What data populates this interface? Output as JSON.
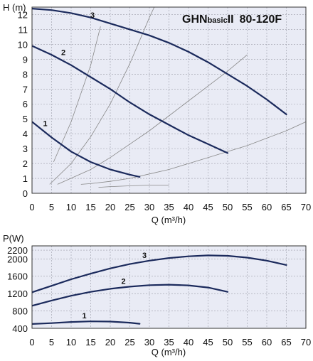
{
  "chart_data": [
    {
      "type": "line",
      "title": "GHNbasicII 80-120F",
      "title_parts": {
        "brand": "GHN",
        "sub": "basic",
        "suffix": "II",
        "model": "80-120F"
      },
      "xlabel": "Q (m³/h)",
      "ylabel": "H (m)",
      "xlim": [
        0,
        70
      ],
      "ylim": [
        0,
        12.5
      ],
      "x_ticks": [
        0,
        5,
        10,
        15,
        20,
        25,
        30,
        35,
        40,
        45,
        50,
        55,
        60,
        65,
        70
      ],
      "y_ticks": [
        0,
        1,
        2,
        3,
        4,
        5,
        6,
        7,
        8,
        9,
        10,
        11,
        12
      ],
      "grid": true,
      "background": "#e9ebf5",
      "curve_color": "#1b2a5c",
      "system_curve_color": "#888888",
      "series": [
        {
          "name": "1",
          "x": [
            0,
            5,
            10,
            15,
            20,
            25,
            27.5
          ],
          "y": [
            4.8,
            3.75,
            2.8,
            2.1,
            1.6,
            1.25,
            1.1
          ]
        },
        {
          "name": "2",
          "x": [
            0,
            5,
            10,
            15,
            20,
            25,
            30,
            35,
            40,
            45,
            50
          ],
          "y": [
            9.9,
            9.3,
            8.6,
            7.8,
            7.0,
            6.1,
            5.3,
            4.6,
            3.9,
            3.3,
            2.7
          ]
        },
        {
          "name": "3",
          "x": [
            0,
            5,
            10,
            15,
            20,
            25,
            30,
            35,
            40,
            45,
            50,
            55,
            60,
            65
          ],
          "y": [
            12.4,
            12.3,
            12.1,
            11.8,
            11.4,
            11.0,
            10.6,
            10.1,
            9.5,
            8.8,
            8.0,
            7.2,
            6.3,
            5.3
          ]
        }
      ],
      "system_curves": [
        {
          "x": [
            5.5,
            10,
            15,
            17.5
          ],
          "y": [
            2.1,
            4.8,
            8.6,
            11.2
          ]
        },
        {
          "x": [
            4.5,
            10,
            15,
            20,
            25,
            30,
            33
          ],
          "y": [
            0.6,
            2.0,
            3.8,
            6.0,
            8.7,
            11.8,
            13.5
          ]
        },
        {
          "x": [
            6.5,
            15,
            20,
            25,
            30,
            35,
            40,
            45,
            50,
            55
          ],
          "y": [
            0.6,
            1.6,
            2.4,
            3.3,
            4.2,
            5.2,
            6.2,
            7.2,
            8.2,
            9.3
          ]
        },
        {
          "x": [
            12.5,
            15,
            20,
            25,
            30,
            35,
            40,
            45,
            50,
            55,
            60,
            65,
            70
          ],
          "y": [
            0.6,
            0.65,
            0.8,
            1.0,
            1.3,
            1.6,
            2.0,
            2.4,
            2.8,
            3.2,
            3.7,
            4.2,
            4.8
          ]
        },
        {
          "x": [
            17,
            20,
            25,
            30,
            35
          ],
          "y": [
            0.4,
            0.45,
            0.5,
            0.55,
            0.55
          ]
        }
      ]
    },
    {
      "type": "line",
      "title": "",
      "xlabel": "Q (m³/h)",
      "ylabel": "P(W)",
      "xlim": [
        0,
        70
      ],
      "ylim": [
        400,
        2300
      ],
      "x_ticks": [
        0,
        5,
        10,
        15,
        20,
        25,
        30,
        35,
        40,
        45,
        50,
        55,
        60,
        65,
        70
      ],
      "y_ticks": [
        400,
        800,
        1200,
        1600,
        2000,
        2200
      ],
      "y_tick_labels": [
        "400",
        "800",
        "1200",
        "1600",
        "2000",
        "2200"
      ],
      "grid": true,
      "background": "#e9ebf5",
      "curve_color": "#1b2a5c",
      "series": [
        {
          "name": "1",
          "x": [
            0,
            5,
            10,
            15,
            20,
            25,
            27.5
          ],
          "y": [
            500,
            520,
            545,
            560,
            555,
            530,
            505
          ]
        },
        {
          "name": "2",
          "x": [
            0,
            5,
            10,
            15,
            20,
            25,
            30,
            35,
            40,
            45,
            50
          ],
          "y": [
            920,
            1040,
            1150,
            1240,
            1310,
            1360,
            1395,
            1405,
            1390,
            1340,
            1240
          ]
        },
        {
          "name": "3",
          "x": [
            0,
            5,
            10,
            15,
            20,
            25,
            30,
            35,
            40,
            45,
            50,
            55,
            60,
            65
          ],
          "y": [
            1230,
            1380,
            1530,
            1660,
            1780,
            1880,
            1960,
            2020,
            2060,
            2080,
            2070,
            2030,
            1960,
            1860
          ]
        }
      ]
    }
  ]
}
